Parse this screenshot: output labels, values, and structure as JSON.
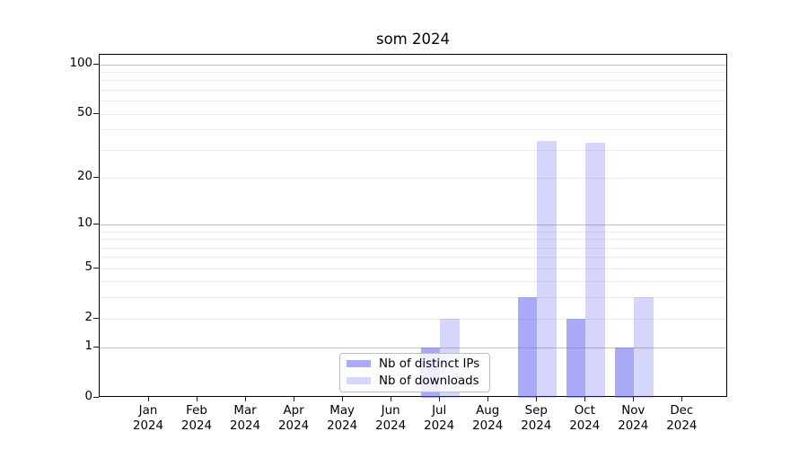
{
  "chart_data": {
    "type": "bar",
    "title": "som 2024",
    "categories": [
      "Jan 2024",
      "Feb 2024",
      "Mar 2024",
      "Apr 2024",
      "May 2024",
      "Jun 2024",
      "Jul 2024",
      "Aug 2024",
      "Sep 2024",
      "Oct 2024",
      "Nov 2024",
      "Dec 2024"
    ],
    "series": [
      {
        "name": "Nb of distinct IPs",
        "color": "#6262f2",
        "alpha": 0.55,
        "values": [
          0,
          0,
          0,
          0,
          0,
          0,
          1,
          0,
          3,
          2,
          1,
          0
        ]
      },
      {
        "name": "Nb of downloads",
        "color": "#6262f2",
        "alpha": 0.26,
        "values": [
          0,
          0,
          0,
          0,
          0,
          0,
          2,
          0,
          34,
          33,
          3,
          0
        ]
      }
    ],
    "xlabel": "",
    "ylabel": "",
    "yscale": "log1p",
    "ylim": [
      0,
      115
    ],
    "yticks": [
      0,
      1,
      2,
      5,
      10,
      20,
      50,
      100
    ],
    "major_gridlines": [
      1,
      10,
      100
    ],
    "minor_gridlines": [
      2,
      3,
      4,
      5,
      6,
      7,
      8,
      9,
      20,
      30,
      40,
      50,
      60,
      70,
      80,
      90
    ],
    "grid": true,
    "legend_position": "lower center",
    "grid_major_color": "#c0c0c0",
    "grid_minor_color": "#ebebeb",
    "axis_color": "#000000"
  }
}
